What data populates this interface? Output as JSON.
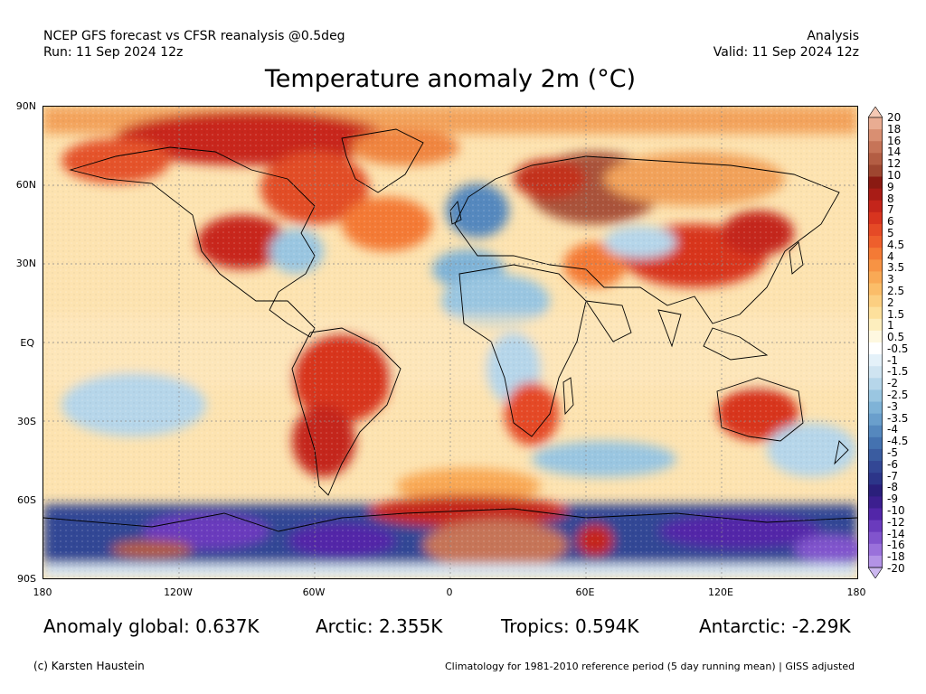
{
  "header": {
    "line1": "NCEP GFS forecast vs CFSR reanalysis @0.5deg",
    "line2": "Run: 11 Sep 2024 12z",
    "right1": "Analysis",
    "right2": "Valid: 11 Sep 2024 12z"
  },
  "title": "Temperature anomaly 2m (°C)",
  "axes": {
    "lat_labels": [
      "90N",
      "60N",
      "30N",
      "EQ",
      "30S",
      "60S",
      "90S"
    ],
    "lon_labels": [
      "180",
      "120W",
      "60W",
      "0",
      "60E",
      "120E",
      "180"
    ]
  },
  "colorbar": {
    "labels": [
      "20",
      "18",
      "16",
      "14",
      "12",
      "10",
      "9",
      "8",
      "7",
      "6",
      "5",
      "4.5",
      "4",
      "3.5",
      "3",
      "2.5",
      "2",
      "1.5",
      "1",
      "0.5",
      "-0.5",
      "-1",
      "-1.5",
      "-2",
      "-2.5",
      "-3",
      "-3.5",
      "-4",
      "-4.5",
      "-5",
      "-6",
      "-7",
      "-8",
      "-9",
      "-10",
      "-12",
      "-14",
      "-16",
      "-18",
      "-20"
    ],
    "colors": [
      "#f4c8b4",
      "#e9ac92",
      "#d98f72",
      "#c67458",
      "#b35d43",
      "#9e4630",
      "#8a1a12",
      "#a81c16",
      "#c4251b",
      "#d8341f",
      "#e54a26",
      "#ee5f2c",
      "#f47a35",
      "#f79344",
      "#f9a955",
      "#fbbd69",
      "#fccf81",
      "#fde09c",
      "#fdeebe",
      "#fef8e0",
      "#ffffff",
      "#e4f1f9",
      "#cfe4f1",
      "#b6d6ea",
      "#9ac6e1",
      "#7fb3d7",
      "#6a9fcc",
      "#5588be",
      "#4472b0",
      "#3a5ca0",
      "#334795",
      "#2c3589",
      "#2a1f7b",
      "#3c1f8f",
      "#5226a8",
      "#6a3bbd",
      "#8154cd",
      "#9a71db",
      "#b393e6",
      "#ccb8ef"
    ]
  },
  "stats": {
    "global": "Anomaly global: 0.637K",
    "arctic": "Arctic: 2.355K",
    "tropics": "Tropics: 0.594K",
    "antarctic": "Antarctic: -2.29K"
  },
  "footer": {
    "left": "(c) Karsten Haustein",
    "right": "Climatology for 1981-2010 reference period (5 day running mean) | GISS adjusted"
  }
}
